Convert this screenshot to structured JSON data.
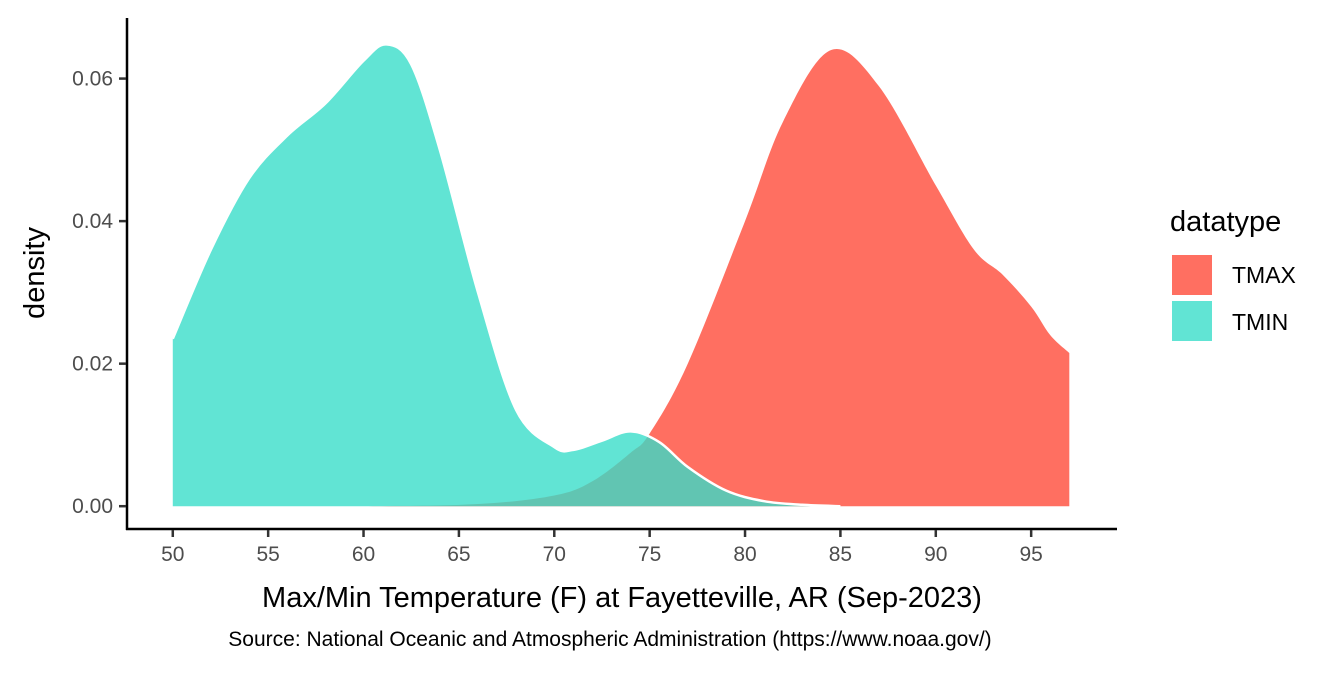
{
  "chart_data": {
    "type": "area",
    "subtype": "density",
    "xlabel": "Max/Min Temperature (F) at Fayetteville, AR (Sep-2023)",
    "ylabel": "density",
    "caption": "Source: National Oceanic and Atmospheric Administration (https://www.noaa.gov/)",
    "xlim": [
      47.6,
      99.5
    ],
    "ylim": [
      -0.0032,
      0.0685
    ],
    "x_ticks": [
      50,
      55,
      60,
      65,
      70,
      75,
      80,
      85,
      90,
      95
    ],
    "y_ticks": [
      0.0,
      0.02,
      0.04,
      0.06
    ],
    "y_tick_labels": [
      "0.00",
      "0.02",
      "0.04",
      "0.06"
    ],
    "legend": {
      "title": "datatype",
      "position": "right"
    },
    "series": [
      {
        "name": "TMAX",
        "color": "#FF6F61",
        "opacity": 1,
        "x": [
          50,
          60,
          66,
          70,
          72,
          74,
          75,
          77,
          80,
          82,
          84.5,
          87,
          90,
          92,
          93.5,
          95,
          96,
          97
        ],
        "y": [
          0,
          0,
          0.0003,
          0.0015,
          0.0035,
          0.0075,
          0.0102,
          0.02,
          0.04,
          0.054,
          0.064,
          0.059,
          0.045,
          0.036,
          0.0325,
          0.028,
          0.024,
          0.0215
        ]
      },
      {
        "name": "TMIN",
        "color": "#37DDC8",
        "opacity": 0.79,
        "x": [
          50,
          52,
          54,
          56,
          58,
          60,
          61.2,
          62.5,
          64,
          66,
          68,
          70,
          71,
          72.5,
          74,
          75.5,
          77,
          79,
          81,
          83,
          85
        ],
        "y": [
          0.0235,
          0.036,
          0.046,
          0.052,
          0.0565,
          0.0625,
          0.0648,
          0.062,
          0.05,
          0.03,
          0.0135,
          0.0083,
          0.0079,
          0.0092,
          0.0105,
          0.009,
          0.0055,
          0.0022,
          0.0007,
          0.0002,
          0
        ]
      }
    ]
  }
}
